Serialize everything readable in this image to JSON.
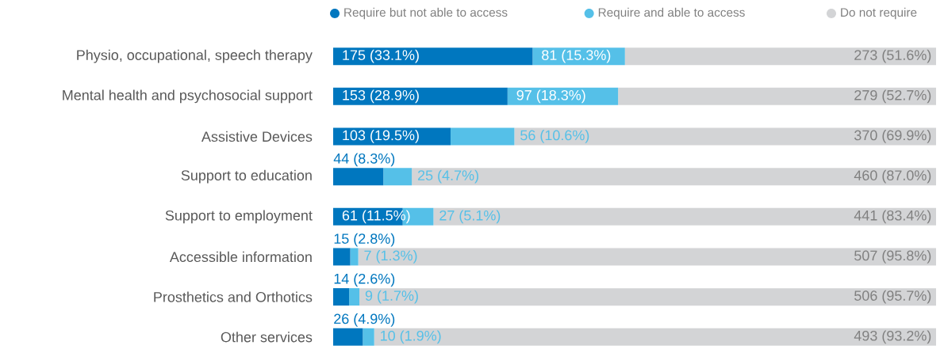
{
  "chart_data": {
    "type": "bar",
    "orientation": "horizontal",
    "stacked": true,
    "legend": "top",
    "categories": [
      "Physio, occupational, speech therapy",
      "Mental health and psychosocial support",
      "Assistive Devices",
      "Support to education",
      "Support to employment",
      "Accessible information",
      "Prosthetics and Orthotics",
      "Other services"
    ],
    "series": [
      {
        "name": "Require but not able to access",
        "color": "#0077bf",
        "values": [
          175,
          153,
          103,
          44,
          61,
          15,
          14,
          26
        ],
        "value_labels": [
          "175 (33.1%)",
          "153 (28.9%)",
          "103 (19.5%)",
          "44 (8.3%)",
          "61 (11.5%)",
          "15 (2.8%)",
          "14 (2.6%)",
          "26 (4.9%)"
        ]
      },
      {
        "name": "Require and able to access",
        "color": "#55c0e8",
        "values": [
          81,
          97,
          56,
          25,
          27,
          7,
          9,
          10
        ],
        "value_labels": [
          "81 (15.3%)",
          "97 (18.3%)",
          "56 (10.6%)",
          "25 (4.7%)",
          "27 (5.1%)",
          "7 (1.3%)",
          "9 (1.7%)",
          "10 (1.9%)"
        ]
      },
      {
        "name": "Do not require",
        "color": "#d3d4d6",
        "values": [
          273,
          279,
          370,
          460,
          441,
          507,
          506,
          493
        ],
        "value_labels": [
          "273 (51.6%)",
          "279 (52.7%)",
          "370 (69.9%)",
          "460 (87.0%)",
          "441 (83.4%)",
          "507 (95.8%)",
          "506 (95.7%)",
          "493 (93.2%)"
        ]
      }
    ]
  }
}
